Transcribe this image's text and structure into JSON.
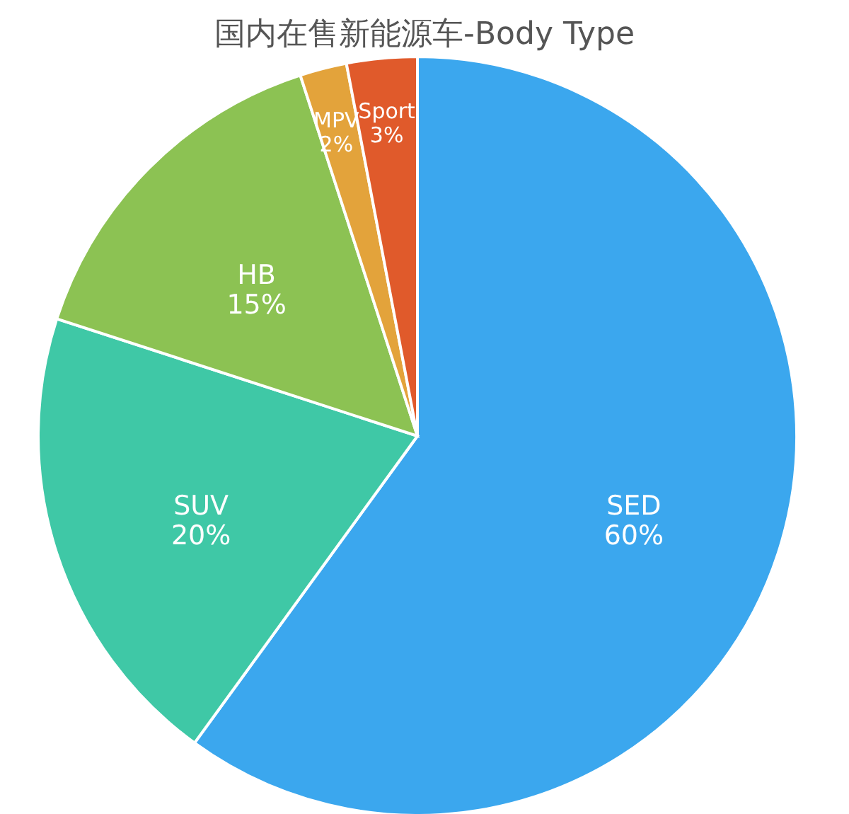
{
  "chart_data": {
    "type": "pie",
    "title": "国内在售新能源车-Body Type",
    "categories": [
      "SED",
      "SUV",
      "HB",
      "MPV",
      "Sport"
    ],
    "values": [
      60,
      20,
      15,
      2,
      3
    ],
    "value_labels": [
      "60%",
      "20%",
      "15%",
      "2%",
      "3%"
    ],
    "colors": [
      "#3ba7ee",
      "#3fc8a6",
      "#8cc253",
      "#e3a33b",
      "#e05a2b"
    ],
    "legend": false
  }
}
